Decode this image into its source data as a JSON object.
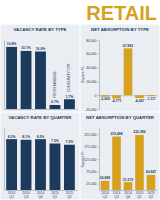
{
  "header": {
    "title": "RETAIL"
  },
  "chart_data": [
    {
      "type": "bar",
      "title": "VACANCY RATE BY TYPE",
      "categories": [
        "REGIONAL CTR",
        "NEIGHBORHOOD",
        "POWER CTR",
        "FREESTANDING",
        "COMMUNITY CTR"
      ],
      "values": [
        10.8,
        10.1,
        10.0,
        0.7,
        1.7
      ],
      "value_labels": [
        "10.8%",
        "10.1%",
        "10.0%",
        "0.7%",
        "1.7%"
      ],
      "color": "#1b3a5c",
      "ylim": [
        0,
        12
      ],
      "data_labels": true,
      "tick_labels": "x"
    },
    {
      "type": "bar",
      "title": "NET ABSORPTION BY TYPE",
      "y_label": "Square Ft.",
      "categories": [
        null,
        null,
        null,
        null,
        null
      ],
      "values": [
        -2069,
        -4771,
        67863,
        -4067,
        -1117
      ],
      "value_labels": [
        "-2,069",
        "-4,771",
        "67,863",
        "-4,067",
        "-1,117"
      ],
      "color": "#d6a21e",
      "ylim": [
        -20000,
        80000
      ],
      "yticks": [
        {
          "value": -20000,
          "label": "-20,000"
        },
        0,
        {
          "value": 20000,
          "label": "20,000"
        },
        {
          "value": 40000,
          "label": "40,000"
        },
        {
          "value": 60000,
          "label": "60,000"
        },
        {
          "value": 80000,
          "label": "80,000"
        }
      ],
      "data_labels": true,
      "tick_labels": "y"
    },
    {
      "type": "bar",
      "title": "VACANCY RATE BY QUARTER",
      "categories": [
        "2014 Q2",
        "2014 Q3",
        "2014 Q4",
        "2015 Q1",
        "2015 Q2"
      ],
      "values": [
        8.2,
        8.1,
        8.2,
        7.5,
        7.3
      ],
      "value_labels": [
        "8.2%",
        "8.1%",
        "8.2%",
        "7.5%",
        "7.3%"
      ],
      "color": "#1b3a5c",
      "ylim": [
        0,
        10
      ],
      "data_labels": true,
      "tick_labels": "x"
    },
    {
      "type": "bar",
      "title": "NET ABSORPTION BY QUARTER",
      "y_label": "Square Ft.",
      "categories": [
        "2014 Q2",
        "2014 Q3",
        "2014 Q4",
        "2015 Q1",
        "2015 Q2"
      ],
      "values": [
        36889,
        215498,
        31573,
        222286,
        60847
      ],
      "value_labels": [
        "36,889",
        "215,498",
        "31,573",
        "222,286",
        "60,847"
      ],
      "color": "#d6a21e",
      "ylim": [
        0,
        250000
      ],
      "yticks": [
        {
          "value": 25000,
          "label": "25,000"
        },
        {
          "value": 75000,
          "label": "75,000"
        },
        {
          "value": 125000,
          "label": "125,000"
        },
        {
          "value": 175000,
          "label": "175,000"
        },
        {
          "value": 225000,
          "label": "225,000"
        }
      ],
      "data_labels": true,
      "tick_labels": true
    }
  ]
}
